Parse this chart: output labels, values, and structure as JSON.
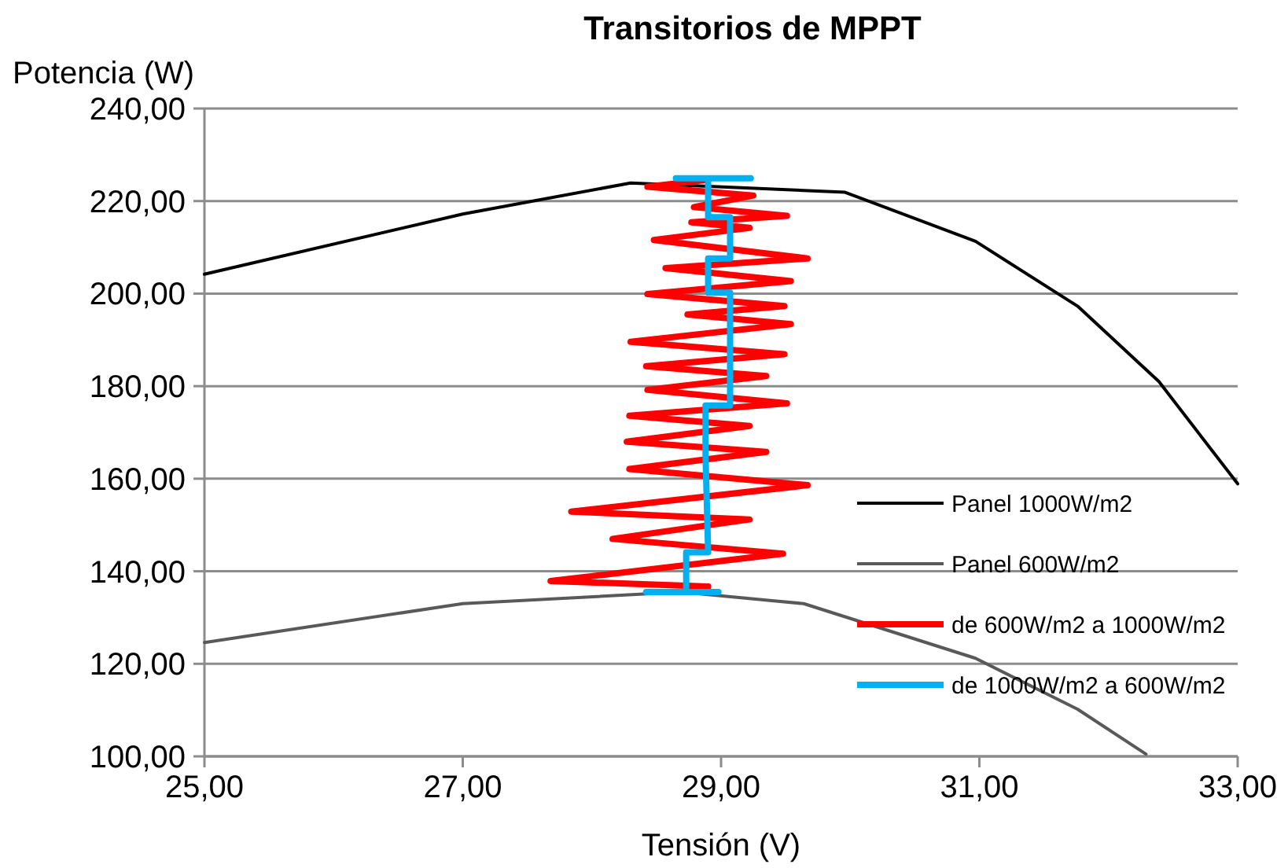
{
  "chart_data": {
    "type": "line",
    "title": "Transitorios de MPPT",
    "xlabel": "Tensión (V)",
    "ylabel": "Potencia (W)",
    "xlim": [
      25,
      33
    ],
    "ylim": [
      100,
      240
    ],
    "xticks": [
      {
        "value": 25,
        "label": "25,00"
      },
      {
        "value": 27,
        "label": "27,00"
      },
      {
        "value": 29,
        "label": "29,00"
      },
      {
        "value": 31,
        "label": "31,00"
      },
      {
        "value": 33,
        "label": "33,00"
      }
    ],
    "yticks": [
      {
        "value": 100,
        "label": "100,00"
      },
      {
        "value": 120,
        "label": "120,00"
      },
      {
        "value": 140,
        "label": "140,00"
      },
      {
        "value": 160,
        "label": "160,00"
      },
      {
        "value": 180,
        "label": "180,00"
      },
      {
        "value": 200,
        "label": "200,00"
      },
      {
        "value": 220,
        "label": "220,00"
      },
      {
        "value": 240,
        "label": "240,00"
      }
    ],
    "grid": "y",
    "legend": "bottom right",
    "marker": "none",
    "line_style": "solid",
    "series": [
      {
        "name": "Panel 1000W/m2",
        "color": "#000000",
        "x": [
          25.0,
          27.0,
          28.3,
          29.96,
          30.97,
          31.76,
          32.39,
          33.0
        ],
        "values": [
          204.2,
          217.2,
          223.9,
          221.9,
          211.3,
          197.3,
          181.0,
          158.9
        ]
      },
      {
        "name": "Panel 600W/m2",
        "color": "#595959",
        "x": [
          25.0,
          27.0,
          28.69,
          29.64,
          30.97,
          31.76,
          32.29
        ],
        "values": [
          124.6,
          133.0,
          135.5,
          133.0,
          121.2,
          110.2,
          100.5
        ]
      },
      {
        "name": "de 600W/m2 a 1000W/m2",
        "color": "#ff0000",
        "x": [
          28.9,
          27.68,
          29.48,
          28.16,
          29.22,
          27.84,
          29.67,
          28.29,
          29.35,
          28.27,
          29.22,
          28.29,
          29.51,
          28.43,
          29.35,
          28.42,
          29.49,
          28.3,
          29.54,
          28.74,
          29.49,
          28.43,
          29.54,
          28.57,
          29.67,
          28.48,
          29.22,
          28.77,
          29.51,
          28.79,
          29.25,
          28.43,
          28.9
        ],
        "values": [
          136.7,
          137.9,
          143.8,
          147.0,
          151.2,
          152.9,
          158.6,
          162.1,
          165.8,
          168.0,
          171.4,
          173.6,
          176.3,
          179.2,
          182.2,
          184.3,
          186.9,
          189.6,
          193.4,
          195.5,
          197.3,
          199.9,
          202.7,
          205.5,
          207.6,
          211.6,
          214.2,
          215.4,
          216.8,
          218.7,
          221.2,
          223.1,
          224.6
        ]
      },
      {
        "name": "de 1000W/m2 a 600W/m2",
        "color": "#00b0f0",
        "x": [
          29.23,
          28.65,
          28.9,
          28.9,
          29.07,
          29.07,
          28.9,
          28.9,
          29.07,
          29.07,
          28.88,
          28.88,
          28.9,
          28.73,
          28.73,
          28.42,
          28.98
        ],
        "values": [
          224.9,
          224.9,
          224.9,
          216.5,
          216.5,
          207.6,
          207.6,
          200.2,
          200.2,
          175.8,
          175.8,
          164.8,
          144.1,
          144.1,
          135.5,
          135.5,
          135.5
        ]
      }
    ]
  }
}
